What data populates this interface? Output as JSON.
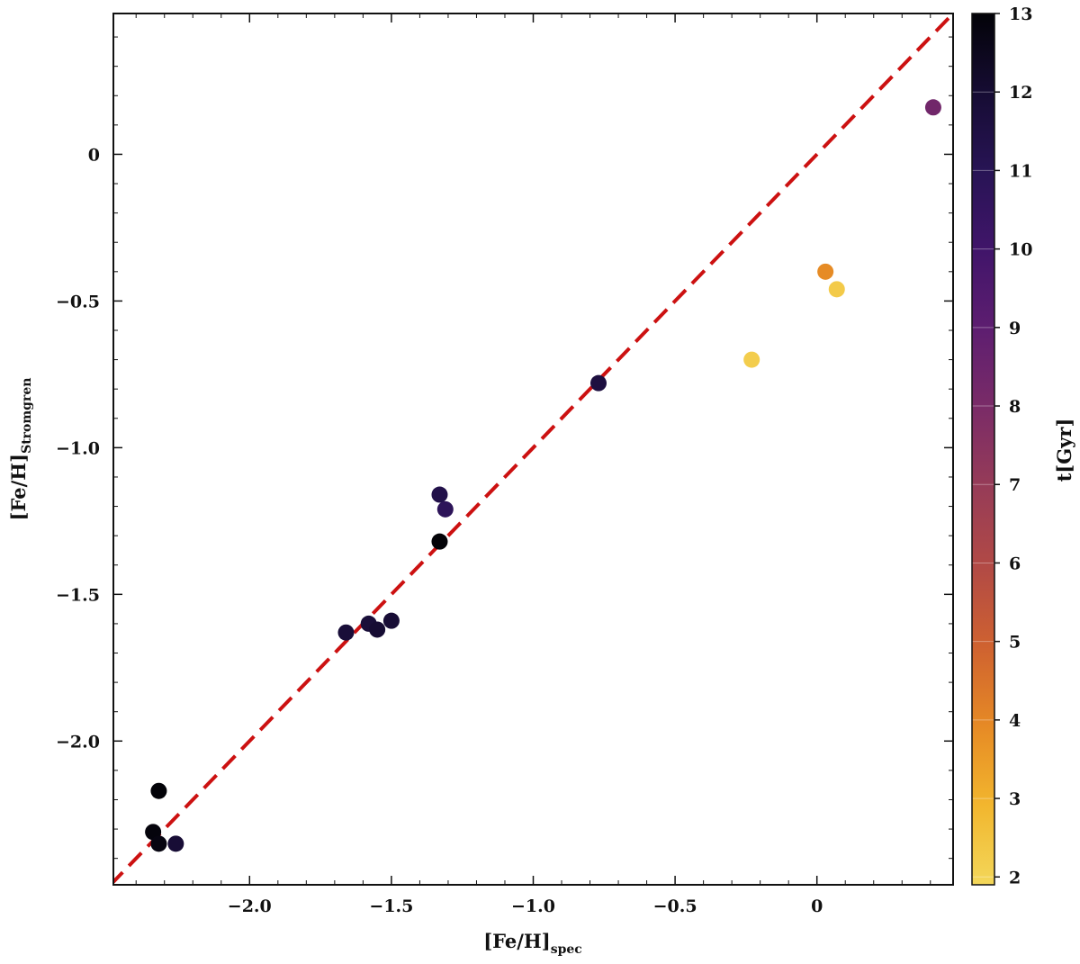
{
  "chart_data": {
    "type": "scatter",
    "title": "",
    "xlabel": {
      "main": "[Fe/H]",
      "sub": "spec"
    },
    "ylabel": {
      "main": "[Fe/H]",
      "sub": "Stromgren"
    },
    "xlim": [
      -2.48,
      0.48
    ],
    "ylim": [
      -2.49,
      0.48
    ],
    "xticks": [
      -2.0,
      -1.5,
      -1.0,
      -0.5,
      0
    ],
    "xtick_labels": [
      "−2.0",
      "−1.5",
      "−1.0",
      "−0.5",
      "0"
    ],
    "yticks": [
      0,
      -0.5,
      -1.0,
      -1.5,
      -2.0
    ],
    "ytick_labels": [
      "0",
      "−0.5",
      "−1.0",
      "−1.5",
      "−2.0"
    ],
    "reference_line": {
      "type": "identity",
      "style": "dashed",
      "color": "#cc1111"
    },
    "grid": false,
    "colorbar": {
      "label": "t[Gyr]",
      "range": [
        1.9,
        13.0
      ],
      "ticks": [
        2,
        3,
        4,
        5,
        6,
        7,
        8,
        9,
        10,
        11,
        12,
        13
      ],
      "tick_labels": [
        "2",
        "3",
        "4",
        "5",
        "6",
        "7",
        "8",
        "9",
        "10",
        "11",
        "12",
        "13"
      ],
      "colormap": "inferno_r",
      "stops": [
        "#f3d75a",
        "#f2b62e",
        "#e68a25",
        "#cf6230",
        "#b24a45",
        "#973c57",
        "#7b2c67",
        "#5e1e70",
        "#41156a",
        "#281455",
        "#160c33",
        "#030308"
      ]
    },
    "points": [
      {
        "x": -2.34,
        "y": -2.31,
        "age": 12.9
      },
      {
        "x": -2.32,
        "y": -2.35,
        "age": 12.8
      },
      {
        "x": -2.32,
        "y": -2.17,
        "age": 13.0
      },
      {
        "x": -2.26,
        "y": -2.35,
        "age": 11.9
      },
      {
        "x": -1.66,
        "y": -1.63,
        "age": 11.8
      },
      {
        "x": -1.58,
        "y": -1.6,
        "age": 11.8
      },
      {
        "x": -1.55,
        "y": -1.62,
        "age": 12.0
      },
      {
        "x": -1.5,
        "y": -1.59,
        "age": 11.9
      },
      {
        "x": -1.33,
        "y": -1.32,
        "age": 13.0
      },
      {
        "x": -1.33,
        "y": -1.16,
        "age": 11.3
      },
      {
        "x": -1.31,
        "y": -1.21,
        "age": 10.8
      },
      {
        "x": -0.77,
        "y": -0.78,
        "age": 11.6
      },
      {
        "x": -0.23,
        "y": -0.7,
        "age": 2.2
      },
      {
        "x": 0.03,
        "y": -0.4,
        "age": 3.9
      },
      {
        "x": 0.07,
        "y": -0.46,
        "age": 2.3
      },
      {
        "x": 0.41,
        "y": 0.16,
        "age": 8.3
      }
    ]
  }
}
